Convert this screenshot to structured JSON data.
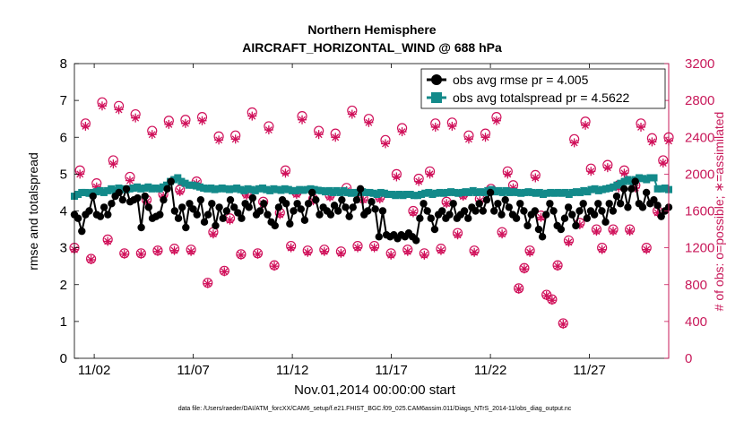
{
  "chart_data": {
    "type": "line",
    "title": "Northern Hemisphere",
    "subtitle": "AIRCRAFT_HORIZONTAL_WIND @ 688 hPa",
    "xlabel": "Nov.01,2014 00:00:00 start",
    "ylabel_left": "rmse and totalspread",
    "ylabel_right": "# of obs: o=possible; ∗=assimilated",
    "footer": "data file: /Users/raeder/DAI/ATM_forcXX/CAM6_setup/f.e21.FHIST_BGC.f09_025.CAM6assim.011/Diags_NTrS_2014-11/obs_diag_output.nc",
    "x_start_day": 1,
    "x_step_days": 0.25,
    "xlim": [
      1,
      31
    ],
    "ylim_left": [
      0,
      8
    ],
    "ylim_right": [
      0,
      3200
    ],
    "x_tick_values": [
      2,
      7,
      12,
      17,
      22,
      27
    ],
    "x_tick_labels": [
      "11/02",
      "11/07",
      "11/12",
      "11/17",
      "11/22",
      "11/27"
    ],
    "y_left_ticks": [
      "0",
      "1",
      "2",
      "3",
      "4",
      "5",
      "6",
      "7",
      "8"
    ],
    "y_right_ticks": [
      "0",
      "400",
      "800",
      "1200",
      "1600",
      "2000",
      "2400",
      "2800",
      "3200"
    ],
    "legend": {
      "rmse": "obs avg rmse pr = 4.005",
      "spread": "obs avg totalspread pr = 4.5622",
      "position": "top-right"
    },
    "colors": {
      "rmse": "#000000",
      "spread": "#138A8A",
      "obs": "#D0105A",
      "axis_right": "#C8195A"
    },
    "series": [
      {
        "name": "obs avg rmse pr",
        "values": [
          3.9,
          3.8,
          3.45,
          3.9,
          4.0,
          4.4,
          3.9,
          3.85,
          4.1,
          3.9,
          4.2,
          4.4,
          4.5,
          4.3,
          4.6,
          4.25,
          4.3,
          4.35,
          3.55,
          4.4,
          4.1,
          3.8,
          3.85,
          3.9,
          4.3,
          4.6,
          4.8,
          4.0,
          3.8,
          4.1,
          3.55,
          4.2,
          4.05,
          3.9,
          4.3,
          3.7,
          3.9,
          4.2,
          3.6,
          4.1,
          3.8,
          4.0,
          4.3,
          4.1,
          3.95,
          3.8,
          4.2,
          4.1,
          4.35,
          3.9,
          4.0,
          4.2,
          3.9,
          3.7,
          3.6,
          4.1,
          4.3,
          4.2,
          3.65,
          4.0,
          4.2,
          4.05,
          3.75,
          4.2,
          4.5,
          4.3,
          3.9,
          4.1,
          4.0,
          3.9,
          4.15,
          4.0,
          4.3,
          4.1,
          3.85,
          4.1,
          4.3,
          4.6,
          3.9,
          4.0,
          4.25,
          4.05,
          3.3,
          4.0,
          3.35,
          3.3,
          3.35,
          3.25,
          3.35,
          3.3,
          3.4,
          3.3,
          3.2,
          3.8,
          4.2,
          4.0,
          3.8,
          3.5,
          3.9,
          4.0,
          3.8,
          3.9,
          4.2,
          3.8,
          3.9,
          4.0,
          3.8,
          4.1,
          4.0,
          4.2,
          4.0,
          4.3,
          4.5,
          4.0,
          4.2,
          3.9,
          4.3,
          4.1,
          3.9,
          3.8,
          4.2,
          4.0,
          3.6,
          3.9,
          4.0,
          3.5,
          3.3,
          3.9,
          4.2,
          4.0,
          3.6,
          3.5,
          3.8,
          4.1,
          3.9,
          3.6,
          4.0,
          4.2,
          3.8,
          4.0,
          3.9,
          4.2,
          4.0,
          3.7,
          4.2,
          4.0,
          4.4,
          4.2,
          4.6,
          4.1,
          4.6,
          4.8,
          4.2,
          4.1,
          4.5,
          4.2,
          4.3,
          4.15,
          3.85,
          4.0,
          4.1
        ]
      },
      {
        "name": "obs avg totalspread pr",
        "values": [
          4.4,
          4.45,
          4.5,
          4.5,
          4.48,
          4.5,
          4.52,
          4.55,
          4.5,
          4.55,
          4.6,
          4.55,
          4.62,
          4.6,
          4.58,
          4.6,
          4.62,
          4.65,
          4.6,
          4.62,
          4.65,
          4.6,
          4.62,
          4.6,
          4.65,
          4.7,
          4.8,
          4.85,
          4.9,
          4.8,
          4.75,
          4.7,
          4.7,
          4.68,
          4.65,
          4.62,
          4.6,
          4.62,
          4.58,
          4.6,
          4.62,
          4.6,
          4.58,
          4.6,
          4.62,
          4.58,
          4.55,
          4.6,
          4.58,
          4.55,
          4.6,
          4.62,
          4.58,
          4.55,
          4.6,
          4.58,
          4.56,
          4.6,
          4.58,
          4.55,
          4.55,
          4.58,
          4.56,
          4.58,
          4.6,
          4.58,
          4.56,
          4.55,
          4.52,
          4.55,
          4.5,
          4.55,
          4.5,
          4.55,
          4.5,
          4.48,
          4.5,
          4.5,
          4.52,
          4.5,
          4.5,
          4.48,
          4.45,
          4.5,
          4.48,
          4.45,
          4.45,
          4.42,
          4.45,
          4.42,
          4.45,
          4.45,
          4.42,
          4.42,
          4.45,
          4.48,
          4.5,
          4.45,
          4.48,
          4.5,
          4.48,
          4.5,
          4.52,
          4.5,
          4.48,
          4.5,
          4.52,
          4.5,
          4.55,
          4.5,
          4.52,
          4.5,
          4.55,
          4.58,
          4.52,
          4.55,
          4.5,
          4.55,
          4.5,
          4.52,
          4.5,
          4.48,
          4.5,
          4.52,
          4.5,
          4.48,
          4.5,
          4.45,
          4.48,
          4.5,
          4.48,
          4.5,
          4.48,
          4.5,
          4.45,
          4.5,
          4.52,
          4.5,
          4.55,
          4.52,
          4.58,
          4.6,
          4.55,
          4.58,
          4.6,
          4.62,
          4.65,
          4.7,
          4.75,
          4.8,
          4.85,
          4.8,
          4.85,
          4.9,
          4.88,
          4.85,
          4.9,
          4.9,
          4.6,
          4.6,
          4.62,
          4.58
        ]
      },
      {
        "name": "# of obs possible",
        "axis": "right",
        "values": [
          1200,
          2040,
          2550,
          1080,
          1900,
          2780,
          1290,
          2150,
          2740,
          1140,
          1970,
          2650,
          1140,
          1720,
          2470,
          1170,
          1780,
          2580,
          1190,
          1830,
          2590,
          1180,
          1920,
          2620,
          820,
          1370,
          2410,
          950,
          1520,
          2420,
          1130,
          1790,
          2670,
          1140,
          1700,
          2520,
          1010,
          1580,
          2040,
          1220,
          1800,
          2630,
          1170,
          1730,
          2470,
          1180,
          1770,
          2440,
          1160,
          1850,
          2690,
          1220,
          1740,
          2600,
          1220,
          1750,
          2370,
          1140,
          2000,
          2500,
          1180,
          1600,
          1950,
          1140,
          2030,
          2550,
          1190,
          1700,
          2560,
          1360,
          1780,
          2420,
          1170,
          1730,
          2440,
          1840,
          2620,
          1370,
          2030,
          1880,
          760,
          980,
          1170,
          1990,
          1550,
          690,
          640,
          1010,
          380,
          1280,
          2380,
          1470,
          2570,
          2060,
          1400,
          1200,
          2100,
          1400,
          1880,
          2040,
          1400,
          1880,
          2550,
          1200,
          2390,
          1600,
          2150,
          2400
        ]
      },
      {
        "name": "# of obs assimilated",
        "axis": "right",
        "values": [
          1180,
          2000,
          2520,
          1070,
          1860,
          2740,
          1270,
          2110,
          2700,
          1130,
          1930,
          2610,
          1130,
          1700,
          2430,
          1160,
          1760,
          2540,
          1170,
          1810,
          2550,
          1160,
          1900,
          2580,
          810,
          1350,
          2370,
          940,
          1500,
          2380,
          1120,
          1770,
          2630,
          1130,
          1680,
          2480,
          1000,
          1560,
          2010,
          1200,
          1780,
          2590,
          1150,
          1710,
          2430,
          1160,
          1750,
          2400,
          1140,
          1820,
          2650,
          1200,
          1720,
          2560,
          1200,
          1730,
          2330,
          1120,
          1970,
          2460,
          1160,
          1580,
          1920,
          1120,
          2000,
          2510,
          1170,
          1680,
          2520,
          1340,
          1760,
          2380,
          1150,
          1710,
          2400,
          1810,
          2580,
          1350,
          2000,
          1850,
          750,
          970,
          1150,
          1960,
          1530,
          680,
          630,
          1000,
          370,
          1260,
          2340,
          1450,
          2530,
          2030,
          1380,
          1180,
          2070,
          1380,
          1850,
          2010,
          1380,
          1850,
          2510,
          1180,
          2350,
          1580,
          2120,
          2360
        ]
      }
    ]
  }
}
